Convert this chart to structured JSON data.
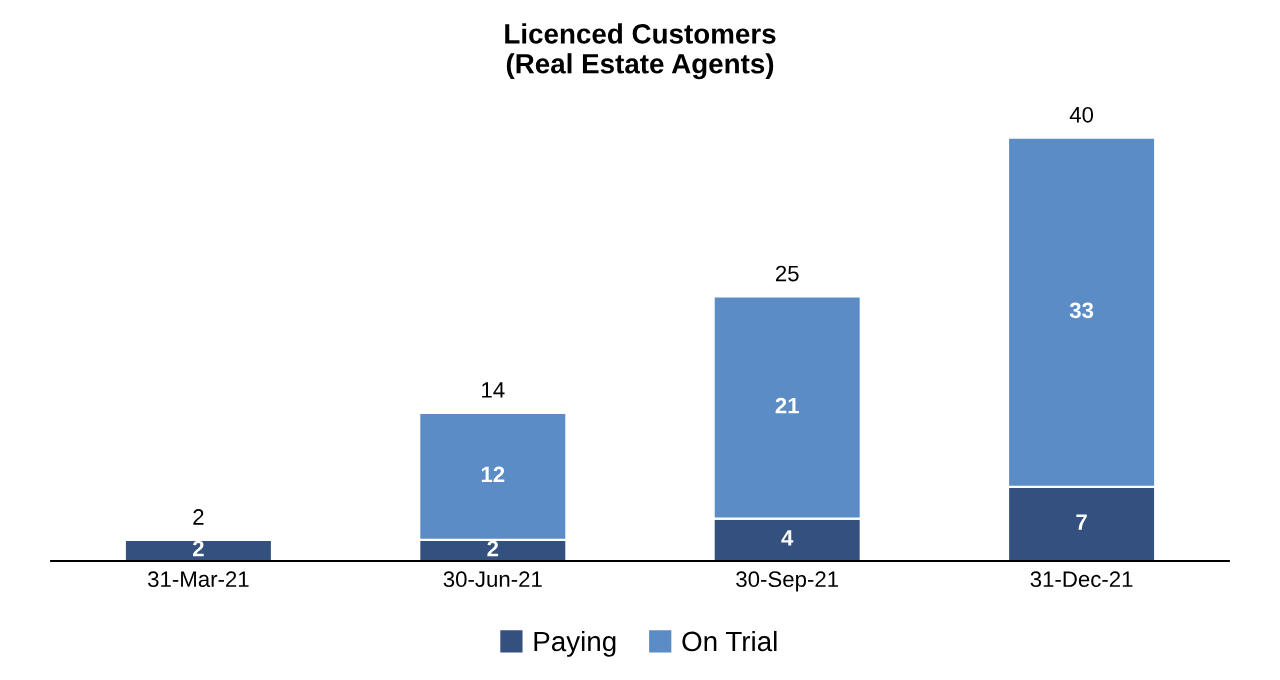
{
  "chart_data": {
    "type": "bar",
    "title": "Licenced Customers\n(Real Estate Agents)",
    "categories": [
      "31-Mar-21",
      "30-Jun-21",
      "30-Sep-21",
      "31-Dec-21"
    ],
    "series": [
      {
        "name": "Paying",
        "color": "#34507f",
        "values": [
          2,
          2,
          4,
          7
        ]
      },
      {
        "name": "On Trial",
        "color": "#5b8cc6",
        "values": [
          null,
          12,
          21,
          33
        ]
      }
    ],
    "stacked": true,
    "data_labels": true,
    "totals": [
      "2",
      "14",
      "25",
      "40"
    ],
    "legend": "bottom",
    "grid": false,
    "tick_labels": "x"
  }
}
